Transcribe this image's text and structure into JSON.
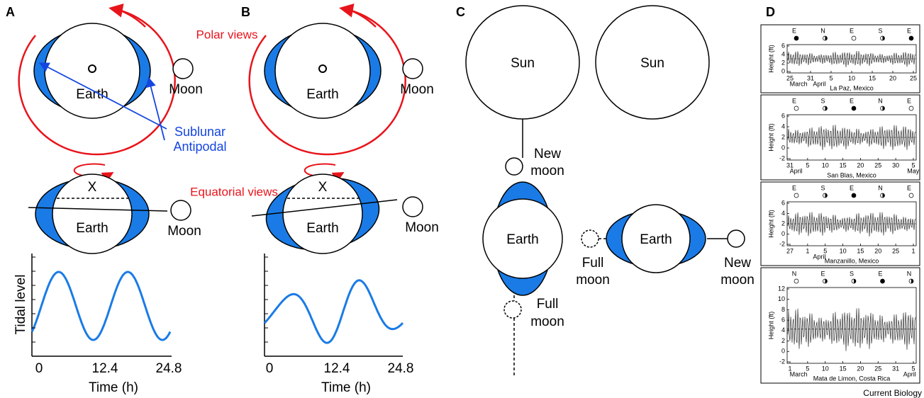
{
  "panel_labels": [
    "A",
    "B",
    "C",
    "D"
  ],
  "panel_a": {
    "polar_title": "Polar views",
    "equatorial_title": "Equatorial views",
    "earth_polar": "Earth",
    "moon_polar": "Moon",
    "sublunar": "Sublunar",
    "antipodal": "Antipodal",
    "x_marker": "X",
    "earth_equatorial": "Earth",
    "moon_equatorial": "Moon",
    "ylabel": "Tidal level",
    "xticks": [
      "0",
      "12.4",
      "24.8"
    ],
    "xlabel": "Time (h)"
  },
  "panel_b": {
    "earth_polar": "Earth",
    "moon_polar": "Moon",
    "x_marker": "X",
    "earth_equatorial": "Earth",
    "moon_equatorial": "Moon",
    "xticks": [
      "0",
      "12.4",
      "24.8"
    ],
    "xlabel": "Time (h)"
  },
  "panel_c": {
    "sun_left": "Sun",
    "sun_right": "Sun",
    "new_moon_left": [
      "New",
      "moon"
    ],
    "earth_left": "Earth",
    "full_moon_left": [
      "Full",
      "moon"
    ],
    "full_moon_right": [
      "Full",
      "moon"
    ],
    "earth_right": "Earth",
    "new_moon_right": [
      "New",
      "moon"
    ]
  },
  "panel_d": {
    "ylabel": "Height (ft)",
    "plots": [
      {
        "title": "La Paz, Mexico",
        "yticks": [
          "6",
          "4",
          "2",
          "0"
        ],
        "xticks": [
          "25",
          "31",
          "5",
          "10",
          "15",
          "20",
          "25"
        ],
        "months": [
          "March",
          "April"
        ],
        "phases": [
          "E",
          "N",
          "E",
          "S",
          "E"
        ]
      },
      {
        "title": "San Blas, Mexico",
        "yticks": [
          "6",
          "4",
          "2",
          "0",
          "-2"
        ],
        "xticks": [
          "31",
          "5",
          "10",
          "15",
          "20",
          "25",
          "30",
          "5"
        ],
        "months": [
          "April",
          "May"
        ],
        "phases": [
          "E",
          "S",
          "E",
          "N",
          "E"
        ]
      },
      {
        "title": "Manzanillo, Mexico",
        "yticks": [
          "6",
          "4",
          "2",
          "0",
          "-2"
        ],
        "xticks": [
          "27",
          "1",
          "5",
          "10",
          "15",
          "20",
          "25",
          "1"
        ],
        "months": [
          "April"
        ],
        "phases": [
          "E",
          "S",
          "E",
          "N",
          "E"
        ]
      },
      {
        "title": "Mata de Limon, Costa Rica",
        "yticks": [
          "12",
          "10",
          "8",
          "6",
          "4",
          "2",
          "0",
          "-2"
        ],
        "xticks": [
          "1",
          "5",
          "10",
          "15",
          "20",
          "25",
          "31",
          "5"
        ],
        "months": [
          "March",
          "April"
        ],
        "phases": [
          "N",
          "E",
          "S",
          "E",
          "N"
        ]
      }
    ]
  },
  "footer": "Current Biology"
}
